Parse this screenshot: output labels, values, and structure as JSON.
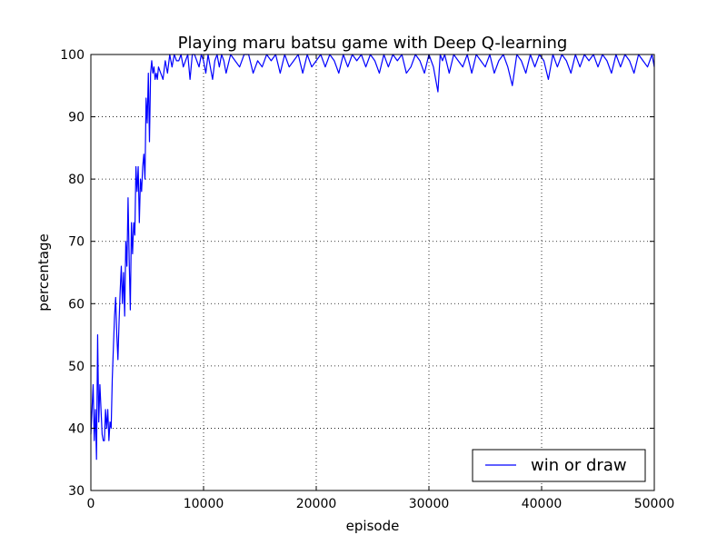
{
  "chart_data": {
    "type": "line",
    "title": "Playing maru batsu game with Deep Q-learning",
    "xlabel": "episode",
    "ylabel": "percentage",
    "xlim": [
      0,
      50000
    ],
    "ylim": [
      30,
      100
    ],
    "xticks": [
      0,
      10000,
      20000,
      30000,
      40000,
      50000
    ],
    "yticks": [
      30,
      40,
      50,
      60,
      70,
      80,
      90,
      100
    ],
    "xtick_labels": [
      "0",
      "10000",
      "20000",
      "30000",
      "40000",
      "50000"
    ],
    "ytick_labels": [
      "30",
      "40",
      "50",
      "60",
      "70",
      "80",
      "90",
      "100"
    ],
    "grid": true,
    "legend_position": "lower-right",
    "colors": {
      "series": "#0000ff",
      "grid": "#000000",
      "frame": "#000000"
    },
    "series": [
      {
        "name": "win or draw",
        "x": [
          0,
          200,
          300,
          400,
          500,
          600,
          700,
          800,
          900,
          1000,
          1100,
          1200,
          1300,
          1400,
          1500,
          1600,
          1700,
          1800,
          1900,
          2000,
          2100,
          2200,
          2300,
          2400,
          2500,
          2600,
          2700,
          2800,
          2900,
          3000,
          3100,
          3200,
          3300,
          3400,
          3500,
          3600,
          3700,
          3800,
          3900,
          4000,
          4100,
          4200,
          4300,
          4400,
          4500,
          4600,
          4700,
          4800,
          4900,
          5000,
          5100,
          5200,
          5300,
          5400,
          5500,
          5600,
          5700,
          5800,
          5900,
          6000,
          6200,
          6400,
          6600,
          6800,
          7000,
          7200,
          7400,
          7600,
          7800,
          8000,
          8200,
          8400,
          8600,
          8800,
          9000,
          9200,
          9400,
          9600,
          9800,
          10000,
          10200,
          10400,
          10600,
          10800,
          11000,
          11200,
          11400,
          11600,
          11800,
          12000,
          12400,
          12800,
          13200,
          13600,
          14000,
          14400,
          14800,
          15200,
          15600,
          16000,
          16400,
          16800,
          17200,
          17600,
          18000,
          18400,
          18800,
          19200,
          19600,
          20000,
          20400,
          20800,
          21200,
          21600,
          22000,
          22400,
          22800,
          23200,
          23600,
          24000,
          24400,
          24800,
          25200,
          25600,
          26000,
          26400,
          26800,
          27200,
          27600,
          28000,
          28400,
          28800,
          29200,
          29600,
          30000,
          30400,
          30800,
          31000,
          31200,
          31400,
          31800,
          32200,
          32600,
          33000,
          33400,
          33800,
          34200,
          34600,
          35000,
          35400,
          35800,
          36200,
          36600,
          37000,
          37400,
          37800,
          38200,
          38600,
          39000,
          39400,
          39800,
          40200,
          40600,
          41000,
          41400,
          41800,
          42200,
          42600,
          43000,
          43400,
          43800,
          44200,
          44600,
          45000,
          45400,
          45800,
          46200,
          46600,
          47000,
          47400,
          47800,
          48200,
          48600,
          49000,
          49400,
          49800,
          50000
        ],
        "y": [
          39,
          47,
          38,
          43,
          35,
          55,
          41,
          47,
          43,
          39,
          38,
          38,
          43,
          40,
          43,
          38,
          41,
          40,
          48,
          53,
          58,
          61,
          55,
          51,
          57,
          62,
          66,
          60,
          65,
          58,
          70,
          66,
          77,
          67,
          59,
          73,
          68,
          73,
          71,
          82,
          78,
          82,
          73,
          80,
          78,
          82,
          84,
          80,
          93,
          89,
          97,
          86,
          97,
          99,
          97,
          98,
          96,
          97,
          96,
          98,
          97,
          96,
          99,
          97,
          100,
          98,
          100,
          99,
          99,
          100,
          98,
          99,
          100,
          96,
          100,
          100,
          99,
          98,
          100,
          99,
          97,
          100,
          98,
          96,
          99,
          100,
          98,
          100,
          99,
          97,
          100,
          99,
          98,
          100,
          100,
          97,
          99,
          98,
          100,
          99,
          100,
          97,
          100,
          98,
          99,
          100,
          97,
          100,
          98,
          99,
          100,
          98,
          100,
          99,
          97,
          100,
          98,
          100,
          99,
          100,
          98,
          100,
          99,
          97,
          100,
          98,
          100,
          99,
          100,
          97,
          98,
          100,
          99,
          97,
          100,
          98,
          94,
          100,
          99,
          100,
          97,
          100,
          99,
          98,
          100,
          97,
          100,
          99,
          98,
          100,
          97,
          99,
          100,
          98,
          95,
          100,
          99,
          97,
          100,
          98,
          100,
          99,
          96,
          100,
          98,
          100,
          99,
          97,
          100,
          98,
          100,
          99,
          100,
          98,
          100,
          99,
          97,
          100,
          98,
          100,
          99,
          97,
          100,
          99,
          98,
          100,
          98
        ]
      }
    ]
  }
}
